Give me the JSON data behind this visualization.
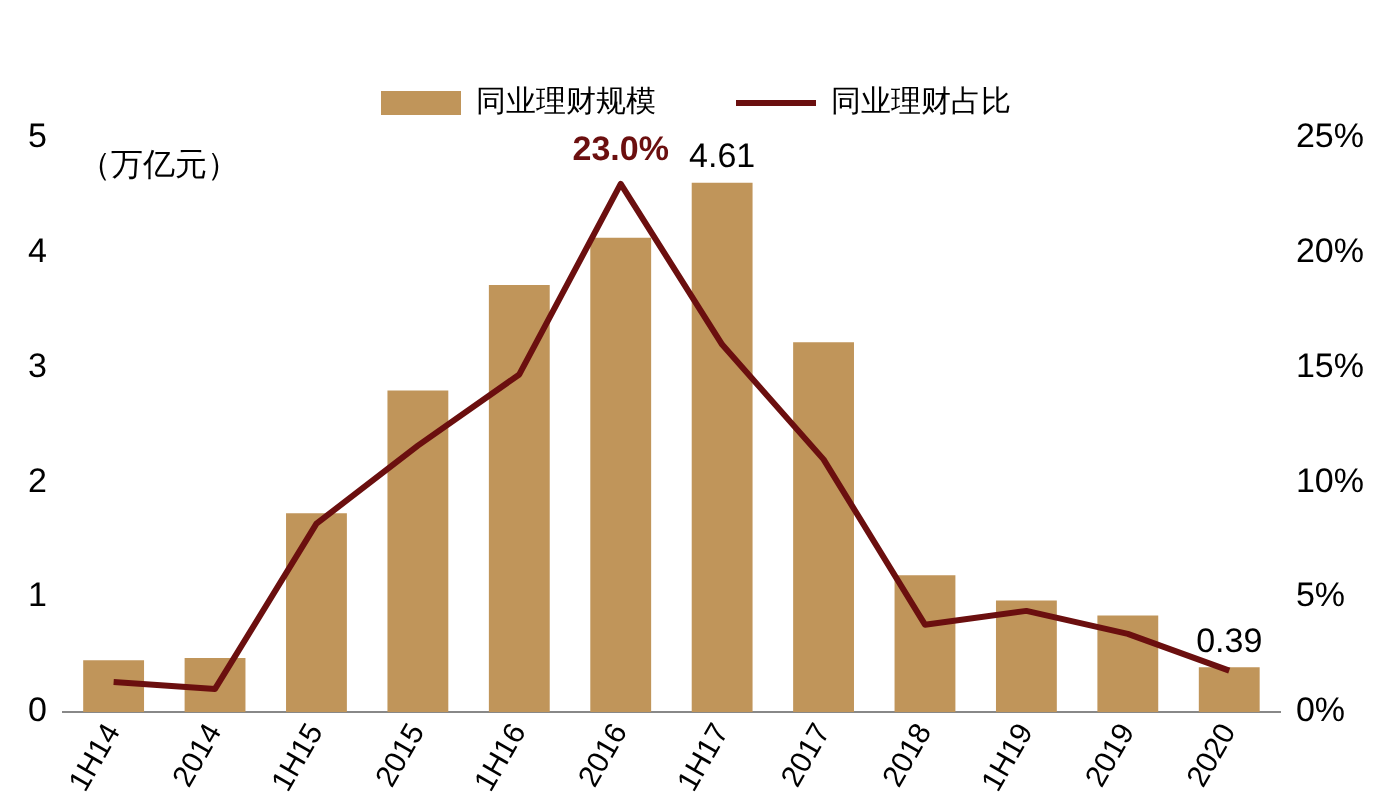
{
  "chart_data": {
    "type": "bar",
    "categories": [
      "1H14",
      "2014",
      "1H15",
      "2015",
      "1H16",
      "2016",
      "1H17",
      "2017",
      "2018",
      "1H19",
      "2019",
      "2020"
    ],
    "series": [
      {
        "name": "同业理财规模",
        "color": "#c0955a",
        "values": [
          0.45,
          0.47,
          1.73,
          2.8,
          3.72,
          4.13,
          4.61,
          3.22,
          1.19,
          0.97,
          0.84,
          0.39
        ],
        "value_labels": [
          null,
          null,
          null,
          null,
          null,
          null,
          "4.61",
          null,
          null,
          null,
          null,
          "0.39"
        ]
      },
      {
        "name": "同业理财占比",
        "type": "line",
        "axis": "y2",
        "color": "#6b0f0f",
        "values": [
          1.3,
          1.0,
          8.2,
          11.6,
          14.7,
          23.0,
          16.0,
          11.0,
          3.8,
          4.4,
          3.4,
          1.8
        ],
        "value_labels": [
          null,
          null,
          null,
          null,
          null,
          "23.0%",
          null,
          null,
          null,
          null,
          null,
          null
        ]
      }
    ],
    "ylim": [
      0,
      5
    ],
    "yticks": [
      0,
      1,
      2,
      3,
      4,
      5
    ],
    "y2lim": [
      0,
      25
    ],
    "y2ticks": [
      {
        "value": 0,
        "label": "0%"
      },
      {
        "value": 5,
        "label": "5%"
      },
      {
        "value": 10,
        "label": "10%"
      },
      {
        "value": 15,
        "label": "15%"
      },
      {
        "value": 20,
        "label": "20%"
      },
      {
        "value": 25,
        "label": "25%"
      }
    ],
    "annotations": [
      "（万亿元）"
    ],
    "legend": "top",
    "grid": false,
    "marker": "none",
    "line_style": "solid"
  }
}
